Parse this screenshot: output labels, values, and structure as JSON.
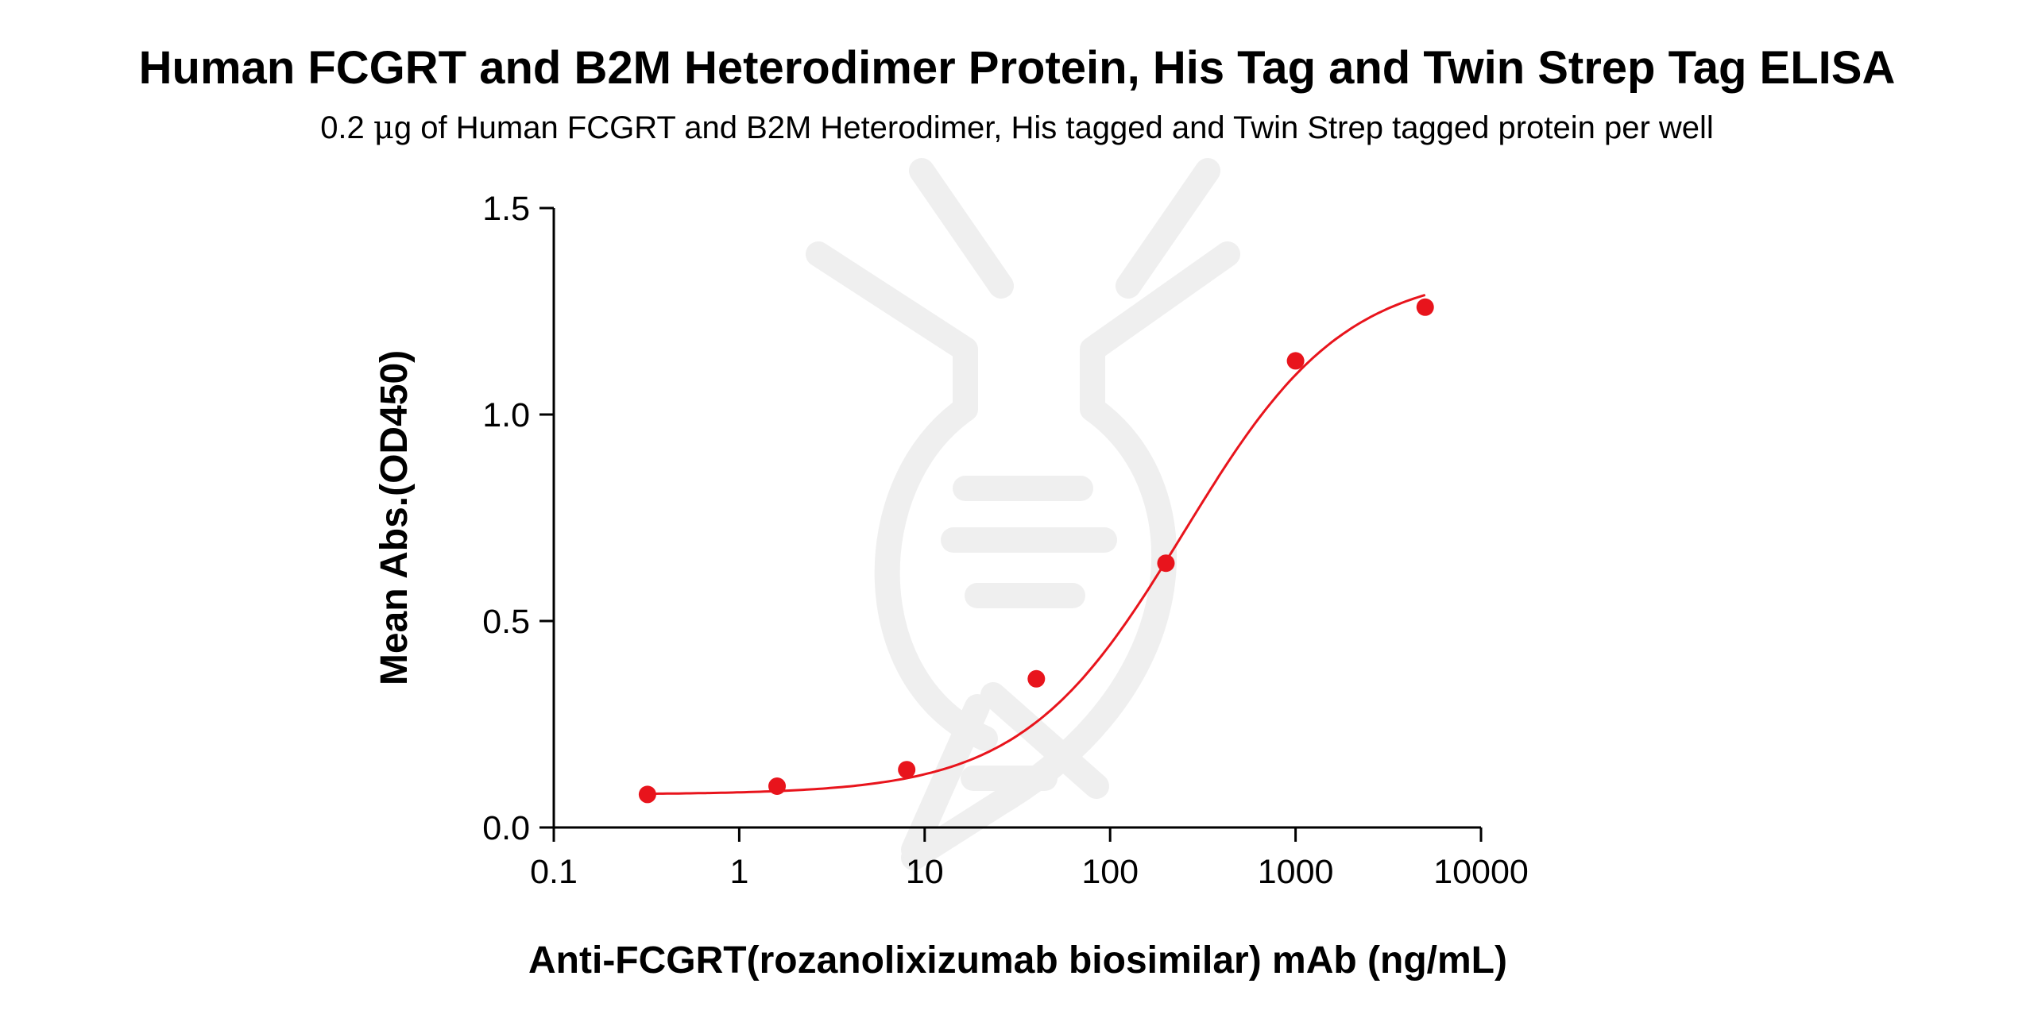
{
  "chart_data": {
    "type": "scatter",
    "title": "Human FCGRT and B2M Heterodimer Protein, His Tag and Twin Strep Tag ELISA",
    "subtitle_parts": [
      "0.2 ",
      "μ",
      "g of Human FCGRT and B2M Heterodimer, His tagged and Twin Strep tagged protein per well"
    ],
    "xlabel": "Anti-FCGRT(rozanolixizumab biosimilar) mAb (ng/mL)",
    "ylabel": "Mean Abs.(OD450)",
    "x_scale": "log",
    "xlim": [
      0.1,
      10000
    ],
    "ylim": [
      0,
      1.5
    ],
    "x_ticks": [
      0.1,
      1,
      10,
      100,
      1000,
      10000
    ],
    "x_tick_labels": [
      "0.1",
      "1",
      "10",
      "100",
      "1000",
      "10000"
    ],
    "y_ticks": [
      0,
      0.5,
      1.0,
      1.5
    ],
    "y_tick_labels": [
      "0.0",
      "0.5",
      "1.0",
      "1.5"
    ],
    "grid": false,
    "series": [
      {
        "x": [
          0.32,
          1.6,
          8,
          40,
          200,
          1000,
          5000
        ],
        "y": [
          0.08,
          0.1,
          0.14,
          0.36,
          0.64,
          1.13,
          1.26
        ],
        "color": "#e8141c",
        "marker": "circle",
        "fit": "4PL",
        "fit_params": {
          "bottom": 0.08,
          "top": 1.35,
          "ec50": 250,
          "hill": 1.0
        }
      }
    ]
  },
  "colors": {
    "accent": "#e8141c",
    "axis": "#000000",
    "watermark": "#efefef"
  }
}
